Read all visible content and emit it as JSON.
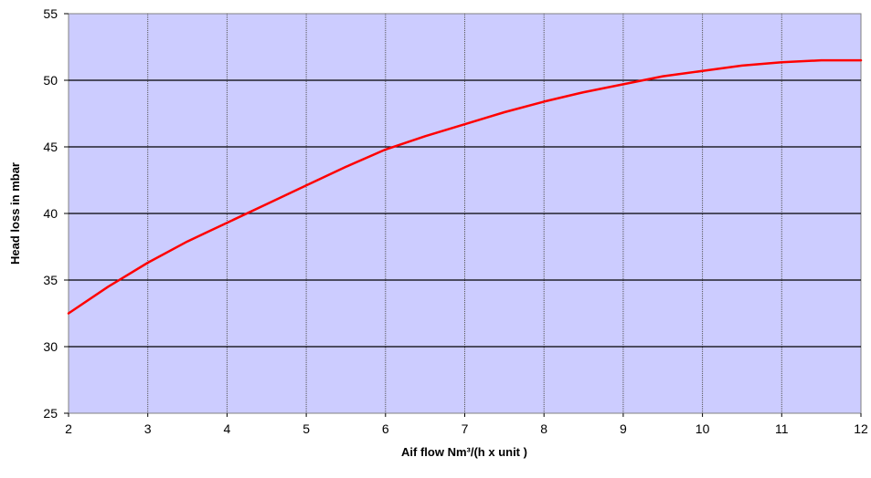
{
  "chart_data": {
    "type": "line",
    "title": "",
    "xlabel": "Aif flow Nm³/(h x unit )",
    "ylabel": "Head loss in mbar",
    "xlim": [
      2,
      12
    ],
    "ylim": [
      25,
      55
    ],
    "x_ticks": [
      "2",
      "3",
      "4",
      "5",
      "6",
      "7",
      "8",
      "9",
      "10",
      "11",
      "12"
    ],
    "y_ticks": [
      "25",
      "30",
      "35",
      "40",
      "45",
      "50",
      "55"
    ],
    "grid": {
      "x": true,
      "y": true
    },
    "legend": "none",
    "plot_background": "#ccccff",
    "series": [
      {
        "color": "#ff0000",
        "x": [
          2,
          2.5,
          3,
          3.5,
          4,
          4.5,
          5,
          5.5,
          6,
          6.5,
          7,
          7.5,
          8,
          8.5,
          9,
          9.5,
          10,
          10.5,
          11,
          11.5,
          12
        ],
        "y": [
          32.5,
          34.5,
          36.3,
          37.9,
          39.3,
          40.7,
          42.1,
          43.5,
          44.8,
          45.8,
          46.7,
          47.6,
          48.4,
          49.1,
          49.7,
          50.3,
          50.7,
          51.1,
          51.35,
          51.5,
          51.5
        ]
      }
    ]
  }
}
